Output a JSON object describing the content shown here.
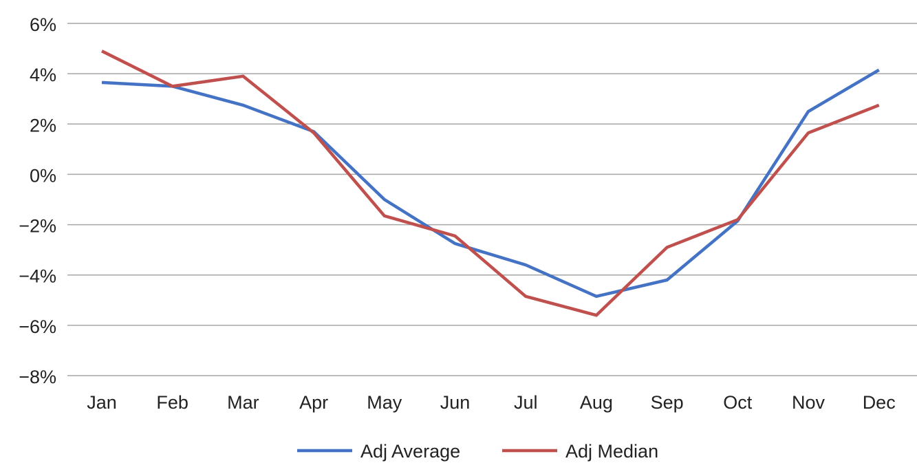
{
  "chart_data": {
    "type": "line",
    "categories": [
      "Jan",
      "Feb",
      "Mar",
      "Apr",
      "May",
      "Jun",
      "Jul",
      "Aug",
      "Sep",
      "Oct",
      "Nov",
      "Dec"
    ],
    "series": [
      {
        "name": "Adj Average",
        "color": "#4472c4",
        "values": [
          3.65,
          3.5,
          2.75,
          1.7,
          -1.0,
          -2.75,
          -3.6,
          -4.85,
          -4.2,
          -1.85,
          2.5,
          4.15
        ]
      },
      {
        "name": "Adj Median",
        "color": "#c0504d",
        "values": [
          4.9,
          3.5,
          3.9,
          1.65,
          -1.65,
          -2.45,
          -4.85,
          -5.6,
          -2.9,
          -1.8,
          1.65,
          2.75
        ]
      }
    ],
    "ylim": [
      -8,
      6
    ],
    "yticks": [
      6,
      4,
      2,
      0,
      -2,
      -4,
      -6,
      -8
    ],
    "ytick_labels": [
      "6%",
      "4%",
      "2%",
      "0%",
      "−2%",
      "−4%",
      "−6%",
      "−8%"
    ],
    "grid": true,
    "legend_position": "bottom"
  }
}
